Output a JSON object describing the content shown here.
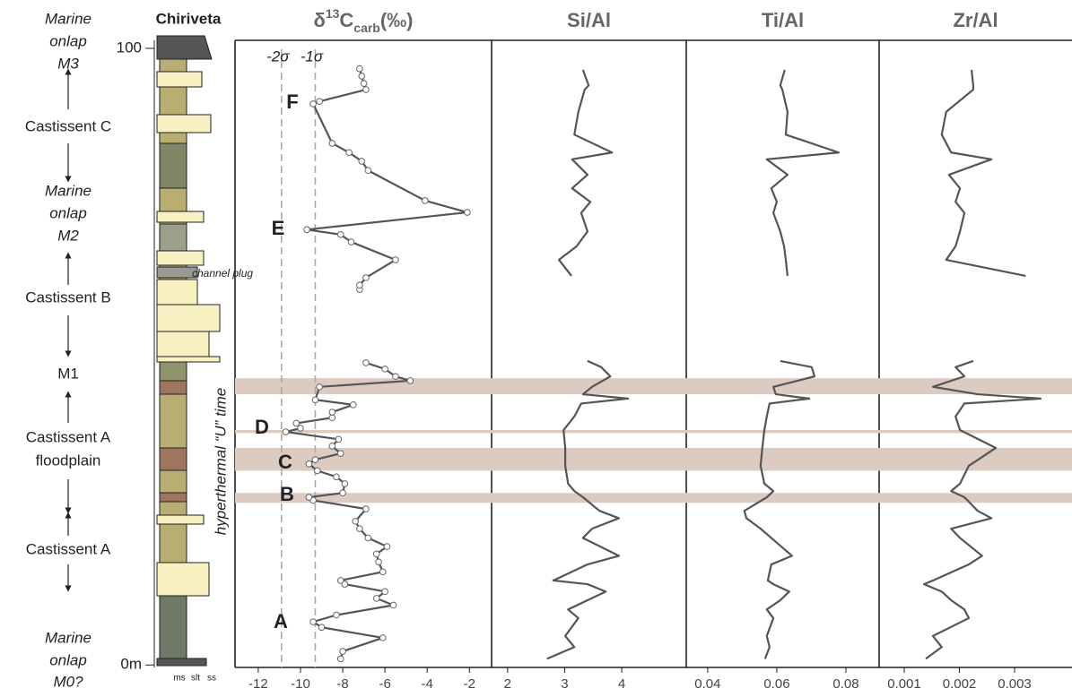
{
  "column": {
    "title": "Chiriveta",
    "annotation": "channel plug",
    "grain_sizes": [
      "ms",
      "slt",
      "ss"
    ],
    "units": [
      {
        "lines": [
          "Marine",
          "onlap",
          "M3"
        ],
        "italic": true
      },
      {
        "lines": [
          "Castissent C"
        ],
        "italic": false
      },
      {
        "lines": [
          "Marine",
          "onlap",
          "M2"
        ],
        "italic": true
      },
      {
        "lines": [
          "Castissent B"
        ],
        "italic": false
      },
      {
        "lines": [
          "M1"
        ],
        "italic": false
      },
      {
        "lines": [
          "Castissent A",
          "floodplain"
        ],
        "italic": false
      },
      {
        "lines": [
          "Castissent A"
        ],
        "italic": false
      },
      {
        "lines": [
          "Marine",
          "onlap",
          "M0?"
        ],
        "italic": true
      }
    ]
  },
  "chart_data": [
    {
      "type": "line",
      "title_parts": [
        "δ",
        "13",
        "C",
        "carb",
        "(‰)"
      ],
      "ylim": [
        -0.4,
        101.3
      ],
      "yticks": [
        {
          "value": 0,
          "label": "0m"
        },
        100
      ],
      "xlim": [
        -13.1,
        -0.95
      ],
      "xticks": [
        -12,
        -10,
        -8,
        -6,
        -4,
        -2
      ],
      "sigma_lines": [
        {
          "label": "-2σ",
          "value": -10.9
        },
        {
          "label": "-1σ",
          "value": -9.3
        }
      ],
      "bands": [
        [
          43.9,
          46.5
        ],
        [
          37.6,
          38.1
        ],
        [
          31.5,
          35.2
        ],
        [
          26.3,
          27.9
        ]
      ],
      "band_color": "#dccbc0",
      "annotations": [
        "A",
        "B",
        "C",
        "D",
        "E",
        "F"
      ],
      "vertical_annotation": "hyperthermal “U” time",
      "markers": true,
      "series": [
        {
          "color": "#555555",
          "heights": [
            1.0,
            2.2,
            4.4,
            6.1,
            7.0,
            8.1,
            9.7,
            10.8,
            11.9,
            13.1,
            13.7,
            15.1,
            16.7,
            18.0,
            19.2,
            20.6,
            22.1,
            23.3,
            25.3,
            26.7,
            27.2,
            27.9,
            29.4,
            30.5,
            31.5,
            32.6,
            33.3,
            34.3,
            35.5,
            36.6,
            37.8,
            38.4,
            39.2,
            40.1,
            41.0,
            42.2,
            43.0,
            45.1,
            46.1,
            46.8,
            48.0,
            49.0,
            null,
            60.9,
            61.6,
            62.8,
            65.7,
            68.6,
            69.8,
            70.6,
            73.4,
            75.3,
            80.2,
            81.7,
            83.1,
            84.6,
            91.0,
            91.4,
            93.3,
            94.3,
            95.5,
            96.7
          ],
          "values": [
            -8.1,
            -8.0,
            -6.1,
            -9.0,
            -9.4,
            -8.3,
            -5.6,
            -6.4,
            -6.0,
            -7.9,
            -8.1,
            -6.1,
            -6.3,
            -6.4,
            -5.9,
            -6.8,
            -7.2,
            -7.4,
            -6.9,
            -9.4,
            -9.6,
            -8.0,
            -7.9,
            -8.3,
            -9.2,
            -9.6,
            -9.3,
            -8.1,
            -8.5,
            -8.2,
            -10.7,
            -10.0,
            -10.2,
            -8.5,
            -8.5,
            -7.5,
            -9.3,
            -9.1,
            -4.8,
            -5.5,
            -6.0,
            -6.9,
            null,
            -7.2,
            -7.2,
            -6.9,
            -5.5,
            -7.6,
            -8.1,
            -9.7,
            -2.1,
            -4.1,
            -6.8,
            -7.1,
            -7.7,
            -8.5,
            -9.4,
            -9.1,
            -6.9,
            -7.0,
            -7.1,
            -7.2
          ]
        }
      ]
    },
    {
      "type": "line",
      "title": "Si/Al",
      "ylim": [
        -0.4,
        101.3
      ],
      "xlim": [
        1.72,
        5.13
      ],
      "xticks": [
        2,
        3,
        4
      ],
      "markers": false,
      "series": [
        {
          "color": "#555555",
          "heights": [
            1.0,
            2.9,
            4.7,
            7.6,
            9.0,
            10.5,
            11.9,
            13.1,
            13.7,
            16.3,
            17.7,
            20.6,
            22.1,
            23.8,
            25.0,
            27.2,
            28.2,
            29.4,
            32.3,
            35.2,
            38.1,
            40.3,
            42.4,
            43.2,
            43.9,
            45.1,
            46.8,
            48.3,
            49.3,
            null,
            63.1,
            65.7,
            67.9,
            70.3,
            73.3,
            75.1,
            77.3,
            79.5,
            82.0,
            83.1,
            86.0,
            89.7,
            93.3,
            94.0,
            96.5
          ],
          "values": [
            2.69,
            3.17,
            3.01,
            3.24,
            3.06,
            3.4,
            3.72,
            3.4,
            2.8,
            3.4,
            3.95,
            3.32,
            3.48,
            3.95,
            3.61,
            3.32,
            3.17,
            3.06,
            3.01,
            3.01,
            2.98,
            3.17,
            3.29,
            4.11,
            3.32,
            3.48,
            3.8,
            3.64,
            3.4,
            null,
            3.12,
            2.9,
            3.21,
            3.4,
            3.29,
            3.45,
            3.13,
            3.4,
            3.13,
            3.83,
            3.17,
            3.24,
            3.35,
            3.42,
            3.32
          ]
        }
      ]
    },
    {
      "type": "line",
      "title": "Ti/Al",
      "ylim": [
        -0.4,
        101.3
      ],
      "xlim": [
        0.0338,
        0.0896
      ],
      "xticks": [
        0.04,
        0.06,
        0.08
      ],
      "markers": false,
      "series": [
        {
          "color": "#555555",
          "heights": [
            1.0,
            2.9,
            4.7,
            7.6,
            9.0,
            10.5,
            11.9,
            13.1,
            13.7,
            16.3,
            17.7,
            20.6,
            22.1,
            23.8,
            25.0,
            27.2,
            28.2,
            29.4,
            32.3,
            35.2,
            38.1,
            40.3,
            42.4,
            43.2,
            43.9,
            45.1,
            46.8,
            48.3,
            49.3,
            null,
            63.1,
            65.7,
            67.9,
            70.3,
            73.3,
            75.1,
            77.3,
            79.5,
            82.0,
            83.1,
            86.0,
            89.7,
            93.3,
            94.0,
            96.5
          ],
          "values": [
            0.0566,
            0.0579,
            0.0571,
            0.059,
            0.0571,
            0.061,
            0.0636,
            0.059,
            0.0574,
            0.0584,
            0.0644,
            0.0584,
            0.0553,
            0.0512,
            0.0506,
            0.0571,
            0.059,
            0.0564,
            0.0553,
            0.0558,
            0.0564,
            0.0571,
            0.0579,
            0.0694,
            0.0597,
            0.059,
            0.0709,
            0.0701,
            0.061,
            null,
            0.0631,
            0.0626,
            0.0621,
            0.061,
            0.059,
            0.06,
            0.0584,
            0.0631,
            0.0571,
            0.0779,
            0.0626,
            0.0631,
            0.0616,
            0.061,
            0.0623
          ]
        }
      ]
    },
    {
      "type": "line",
      "title": "Zr/Al",
      "ylim": [
        -0.4,
        101.3
      ],
      "xlim": [
        0.000545,
        0.00404
      ],
      "xticks": [
        0.001,
        0.002,
        0.003
      ],
      "markers": false,
      "series": [
        {
          "color": "#555555",
          "heights": [
            1.0,
            2.9,
            4.7,
            7.6,
            9.0,
            10.5,
            11.9,
            13.1,
            13.7,
            16.3,
            17.7,
            20.6,
            22.1,
            23.8,
            25.0,
            27.2,
            28.2,
            29.4,
            32.3,
            35.2,
            38.1,
            40.3,
            42.4,
            43.2,
            43.9,
            45.1,
            46.8,
            48.3,
            49.3,
            null,
            63.1,
            65.7,
            67.9,
            70.3,
            73.3,
            75.1,
            77.3,
            79.5,
            82.0,
            83.1,
            86.0,
            89.7,
            93.3,
            94.0,
            96.5
          ],
          "values": [
            0.00139,
            0.00168,
            0.00152,
            0.00217,
            0.00209,
            0.00185,
            0.00168,
            0.00136,
            0.00152,
            0.00217,
            0.00241,
            0.00201,
            0.00185,
            0.00258,
            0.00233,
            0.00209,
            0.00185,
            0.00201,
            0.00217,
            0.00266,
            0.00201,
            0.00193,
            0.00209,
            0.00347,
            0.00233,
            0.00152,
            0.00209,
            0.00193,
            0.00225,
            null,
            0.0032,
            0.00176,
            0.00193,
            0.00201,
            0.00209,
            0.00193,
            0.00201,
            0.00181,
            0.00258,
            0.00185,
            0.00168,
            0.00176,
            0.00225,
            0.00225,
            0.00222
          ]
        }
      ]
    }
  ]
}
